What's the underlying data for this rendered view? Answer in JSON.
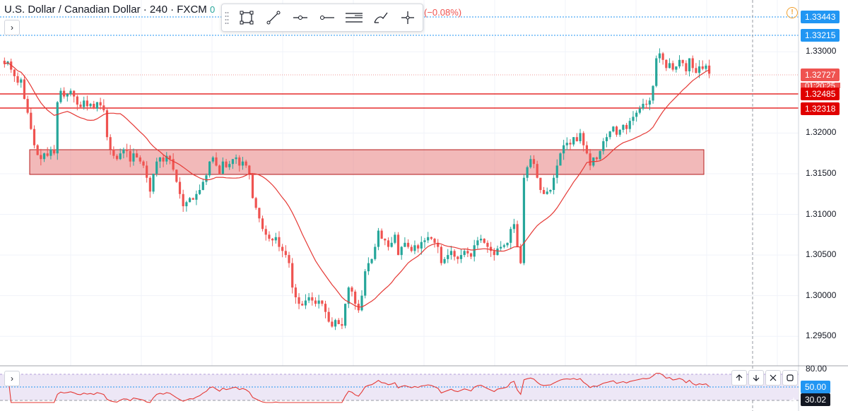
{
  "header": {
    "symbol": "U.S. Dollar / Canadian Dollar · 240 · FXCM",
    "truncated_value": "0",
    "change": "(−0.08%)"
  },
  "toolbar": {
    "tools": [
      "rectangle-icon",
      "trend-line-icon",
      "horizontal-ray-icon",
      "horizontal-line-icon",
      "parallel-channel-icon",
      "brush-icon",
      "crosshair-icon"
    ]
  },
  "price_axis": {
    "ticks": [
      "1.33000",
      "1.32000",
      "1.31500",
      "1.31000",
      "1.30500",
      "1.30000",
      "1.29500"
    ],
    "badges": [
      {
        "text": "1.33443",
        "color": "#2196f3"
      },
      {
        "text": "1.33215",
        "color": "#2196f3"
      },
      {
        "text": "1.32727",
        "color": "#ef5350"
      },
      {
        "text": "1.32485",
        "color": "#e00000"
      },
      {
        "text": "1.32318",
        "color": "#e00000"
      }
    ],
    "countdown": "01:20:25"
  },
  "rsi_axis": {
    "ticks": [
      "80.00"
    ],
    "badges": [
      {
        "text": "50.00",
        "color": "#2196f3"
      },
      {
        "text": "30.02",
        "color": "#131722"
      }
    ]
  },
  "pane_controls": [
    "move-up-icon",
    "move-down-icon",
    "close-icon",
    "maximize-icon"
  ],
  "colors": {
    "up": "#26a69a",
    "down": "#ef5350",
    "ma": "#e53935",
    "zone": "#e57373",
    "guide": "#2196f3",
    "rsi_band": "#ede7f6"
  },
  "chart_data": {
    "type": "candlestick",
    "symbol": "USDCAD",
    "timeframe": "240",
    "ylim": [
      1.2925,
      1.3355
    ],
    "horizontal_levels": [
      1.33443,
      1.33215,
      1.32485,
      1.32318
    ],
    "zone": [
      1.3151,
      1.3182
    ],
    "last_price": 1.32727,
    "closes": [
      1.3285,
      1.3288,
      1.3278,
      1.327,
      1.3262,
      1.3266,
      1.3242,
      1.3225,
      1.3205,
      1.3185,
      1.3173,
      1.3168,
      1.3175,
      1.3172,
      1.318,
      1.3175,
      1.3238,
      1.3252,
      1.3245,
      1.3248,
      1.3252,
      1.3245,
      1.3235,
      1.3232,
      1.324,
      1.3233,
      1.3236,
      1.323,
      1.3238,
      1.3234,
      1.3228,
      1.3195,
      1.318,
      1.3172,
      1.3168,
      1.3175,
      1.318,
      1.3178,
      1.3165,
      1.3175,
      1.317,
      1.3165,
      1.316,
      1.3145,
      1.3128,
      1.315,
      1.3165,
      1.317,
      1.3165,
      1.3172,
      1.3168,
      1.3155,
      1.314,
      1.3125,
      1.311,
      1.3115,
      1.312,
      1.3118,
      1.3125,
      1.313,
      1.314,
      1.3148,
      1.3165,
      1.317,
      1.316,
      1.315,
      1.3165,
      1.3158,
      1.3162,
      1.3168,
      1.317,
      1.316,
      1.3165,
      1.316,
      1.315,
      1.312,
      1.3108,
      1.3095,
      1.3082,
      1.3075,
      1.307,
      1.3068,
      1.3072,
      1.306,
      1.3055,
      1.305,
      1.304,
      1.301,
      1.2998,
      1.299,
      1.2988,
      1.2994,
      1.2998,
      1.2994,
      1.299,
      1.2994,
      1.299,
      1.298,
      1.2968,
      1.2962,
      1.297,
      1.2965,
      1.2963,
      1.299,
      1.301,
      1.3005,
      1.299,
      1.2982,
      1.3,
      1.303,
      1.304,
      1.3045,
      1.306,
      1.308,
      1.307,
      1.3068,
      1.306,
      1.3065,
      1.3075,
      1.305,
      1.306,
      1.3065,
      1.306,
      1.3055,
      1.3062,
      1.3058,
      1.3066,
      1.3068,
      1.3072,
      1.307,
      1.3065,
      1.306,
      1.304,
      1.3045,
      1.305,
      1.3055,
      1.3048,
      1.3045,
      1.305,
      1.3055,
      1.3052,
      1.3048,
      1.3062,
      1.3068,
      1.307,
      1.3065,
      1.306,
      1.3055,
      1.305,
      1.3058,
      1.306,
      1.3062,
      1.3065,
      1.3082,
      1.3088,
      1.306,
      1.304,
      1.3145,
      1.3158,
      1.3168,
      1.3162,
      1.3145,
      1.313,
      1.3125,
      1.3128,
      1.313,
      1.3145,
      1.316,
      1.3175,
      1.3185,
      1.3188,
      1.3186,
      1.3195,
      1.319,
      1.32,
      1.3185,
      1.3175,
      1.316,
      1.317,
      1.3168,
      1.3178,
      1.319,
      1.3195,
      1.3202,
      1.3208,
      1.3198,
      1.3204,
      1.321,
      1.3205,
      1.3215,
      1.322,
      1.3225,
      1.323,
      1.3236,
      1.3235,
      1.324,
      1.3258,
      1.3292,
      1.3298,
      1.329,
      1.328,
      1.3286,
      1.3278,
      1.3282,
      1.329,
      1.3286,
      1.3276,
      1.3292,
      1.328,
      1.3274,
      1.3282,
      1.3279,
      1.3283,
      1.3273
    ]
  }
}
